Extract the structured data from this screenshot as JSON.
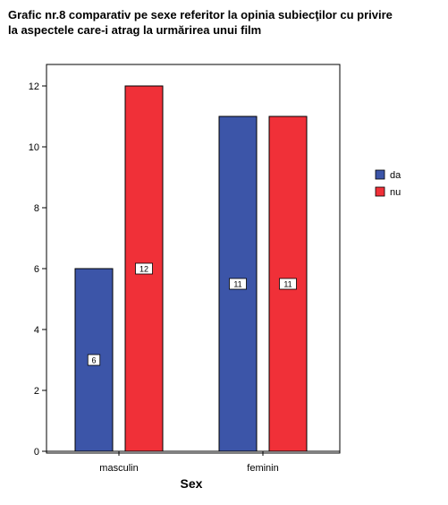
{
  "chart_data": {
    "type": "bar",
    "title": "Grafic nr.8 comparativ pe sexe referitor la opinia subiecţilor cu privire\nla aspectele care-i atrag la urmărirea unui film",
    "xlabel": "Sex",
    "ylabel": "",
    "categories": [
      "masculin",
      "feminin"
    ],
    "series": [
      {
        "name": "da",
        "values": [
          6,
          11
        ],
        "color": "#3c55a8"
      },
      {
        "name": "nu",
        "values": [
          12,
          11
        ],
        "color": "#f03038"
      }
    ],
    "ylim": [
      0,
      13
    ],
    "yticks": [
      0,
      2,
      4,
      6,
      8,
      10,
      12
    ],
    "data_labels": true,
    "grid": false,
    "legend_position": "right"
  }
}
